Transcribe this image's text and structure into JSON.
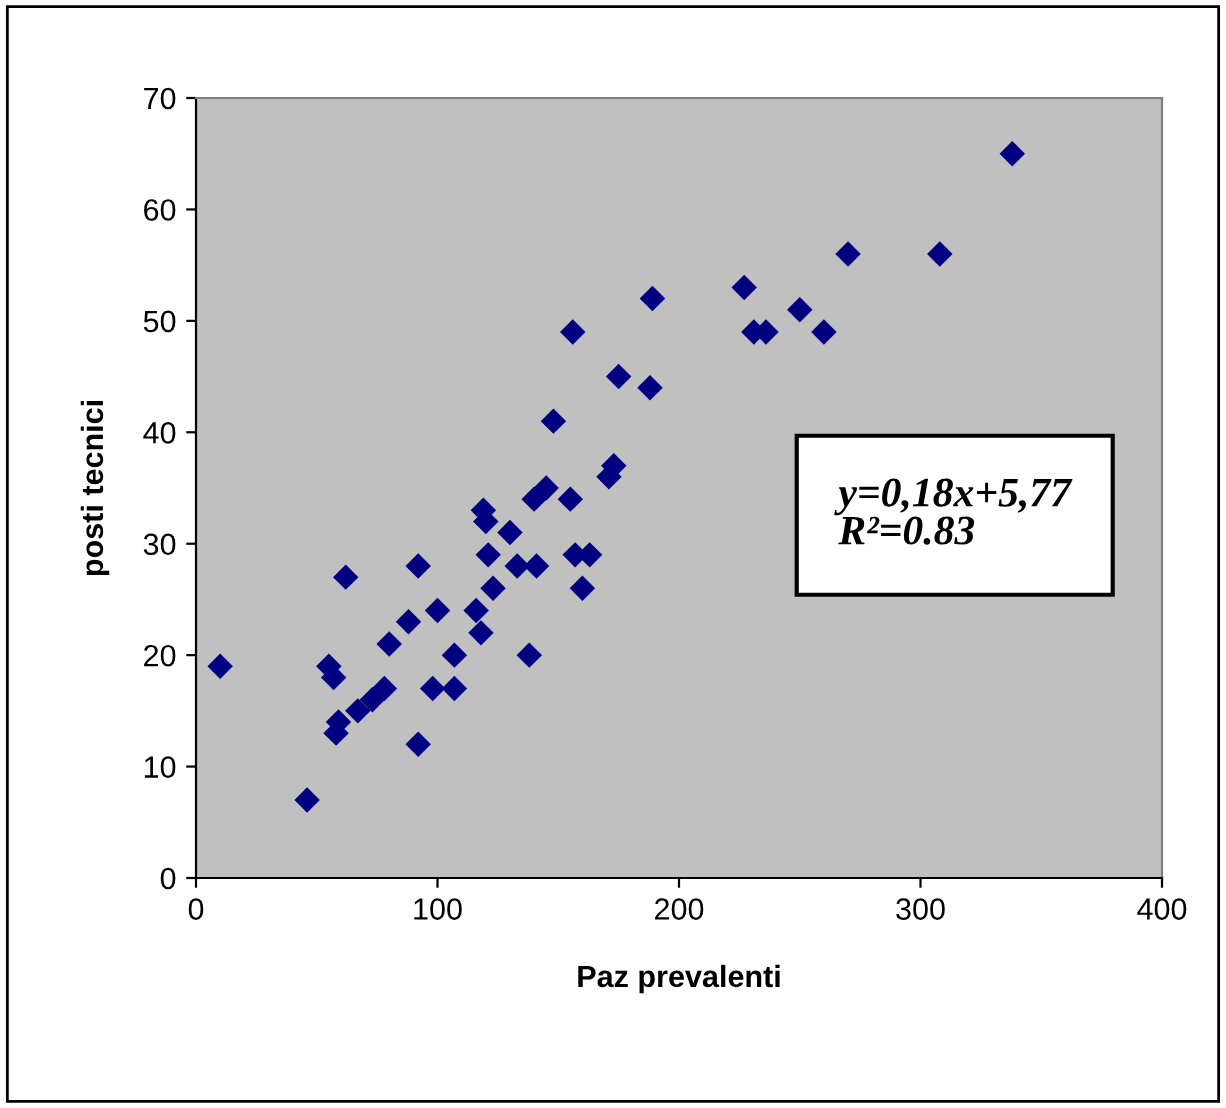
{
  "chart_data": {
    "type": "scatter",
    "xlabel": "Paz prevalenti",
    "ylabel": "posti tecnici",
    "annotations": [
      "y=0,18x+5,77\nR²=0.83"
    ],
    "marker": "diamond",
    "grid": false,
    "legend": false,
    "series": [
      {
        "color": "#000080",
        "x": [
          10,
          46,
          55,
          57,
          58,
          59,
          62,
          67,
          73,
          78,
          80,
          88,
          92,
          92,
          98,
          100,
          107,
          107,
          116,
          118,
          119,
          120,
          121,
          123,
          130,
          133,
          138,
          140,
          141,
          145,
          148,
          155,
          156,
          157,
          160,
          163,
          171,
          173,
          175,
          188,
          189,
          227,
          231,
          236,
          250,
          260,
          270,
          308,
          338
        ],
        "values": [
          19,
          7,
          19,
          18,
          13,
          14,
          27,
          15,
          16,
          17,
          21,
          23,
          12,
          28,
          17,
          24,
          20,
          17,
          24,
          22,
          33,
          32,
          29,
          26,
          31,
          28,
          20,
          34,
          28,
          35,
          41,
          34,
          49,
          29,
          26,
          29,
          36,
          37,
          45,
          44,
          52,
          53,
          49,
          49,
          51,
          49,
          56,
          56,
          65
        ]
      }
    ],
    "xlim": [
      0,
      400
    ],
    "xticks": [
      0,
      100,
      200,
      300,
      400
    ],
    "ylim": [
      0,
      70
    ],
    "yticks": [
      0,
      10,
      20,
      30,
      40,
      50,
      60,
      70
    ]
  }
}
